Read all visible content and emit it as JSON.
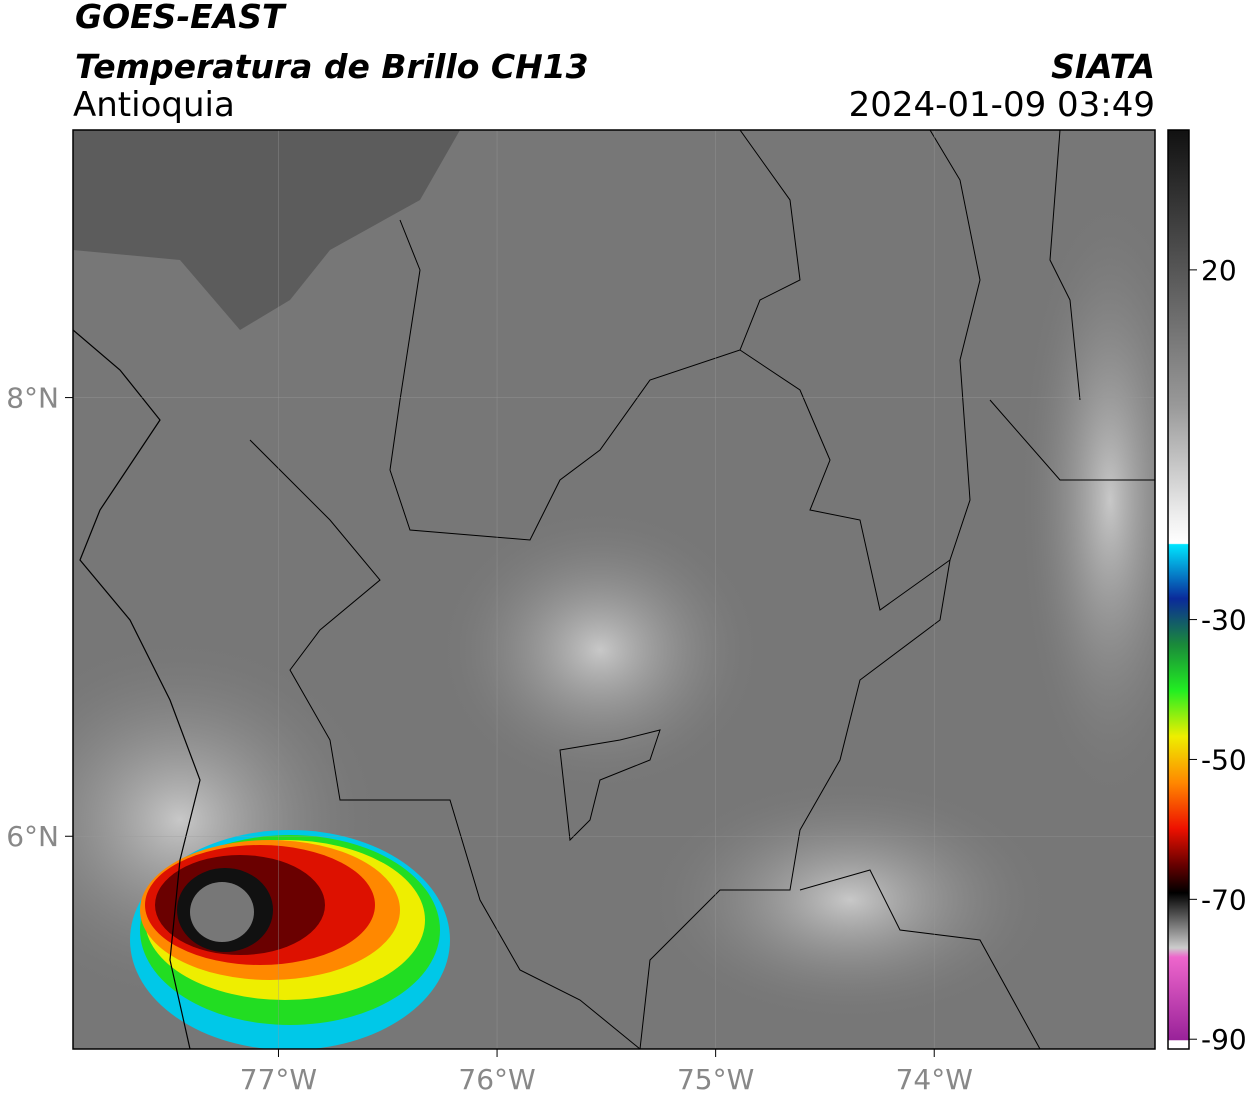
{
  "header": {
    "satellite": "GOES-EAST",
    "product": "Temperatura de Brillo CH13",
    "region": "Antioquia",
    "agency": "SIATA",
    "datetime": "2024-01-09 03:49"
  },
  "map": {
    "xlim": [
      -77.94,
      -72.99
    ],
    "ylim": [
      5.03,
      9.22
    ],
    "xticks": [
      {
        "value": -77,
        "label": "77°W"
      },
      {
        "value": -76,
        "label": "76°W"
      },
      {
        "value": -75,
        "label": "75°W"
      },
      {
        "value": -74,
        "label": "74°W"
      }
    ],
    "yticks": [
      {
        "value": 6,
        "label": "6°N"
      },
      {
        "value": 8,
        "label": "8°N"
      }
    ]
  },
  "colorbar": {
    "lim": [
      -91.4,
      40
    ],
    "ticks": [
      20,
      -30,
      -50,
      -70,
      -90
    ]
  }
}
